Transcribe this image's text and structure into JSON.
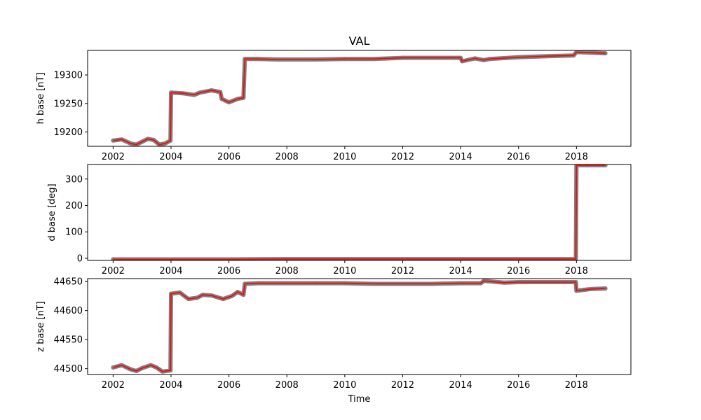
{
  "chart_data": [
    {
      "type": "line",
      "title": "VAL",
      "ylabel": "h base [nT]",
      "xlabel": "",
      "xlim": [
        2001.12,
        2019.88
      ],
      "ylim": [
        19175,
        19343
      ],
      "x_ticks": [
        2002,
        2004,
        2006,
        2008,
        2010,
        2012,
        2014,
        2016,
        2018
      ],
      "x_tick_labels": [
        "2002",
        "2004",
        "2006",
        "2008",
        "2010",
        "2012",
        "2014",
        "2016",
        "2018"
      ],
      "y_ticks": [
        19200,
        19250,
        19300
      ],
      "y_tick_labels": [
        "19200",
        "19250",
        "19300"
      ],
      "series": [
        {
          "color": "#808080",
          "style": "points",
          "x": [
            2002.0,
            2002.3,
            2002.6,
            2002.8,
            2003.0,
            2003.2,
            2003.4,
            2003.6,
            2003.8,
            2003.98,
            2004.0,
            2004.4,
            2004.8,
            2005.0,
            2005.4,
            2005.7,
            2005.75,
            2006.0,
            2006.3,
            2006.5,
            2006.55,
            2007.0,
            2007.7,
            2008.0,
            2009.0,
            2010.0,
            2011.0,
            2012.0,
            2013.0,
            2014.0,
            2014.05,
            2014.5,
            2014.8,
            2015.0,
            2016.0,
            2017.0,
            2017.9,
            2018.0,
            2018.5,
            2019.0
          ],
          "y": [
            19185,
            19187,
            19180,
            19178,
            19183,
            19188,
            19186,
            19178,
            19180,
            19185,
            19269,
            19268,
            19265,
            19269,
            19273,
            19270,
            19258,
            19252,
            19258,
            19260,
            19328,
            19328,
            19327,
            19327,
            19327,
            19328,
            19328,
            19330,
            19330,
            19330,
            19324,
            19329,
            19326,
            19328,
            19331,
            19333,
            19334,
            19340,
            19339,
            19338
          ]
        },
        {
          "color": "#ff0000",
          "style": "line",
          "x": [
            2002.0,
            2002.3,
            2002.6,
            2002.8,
            2003.0,
            2003.2,
            2003.4,
            2003.6,
            2003.8,
            2003.98,
            2004.0,
            2004.4,
            2004.8,
            2005.0,
            2005.4,
            2005.7,
            2005.75,
            2006.0,
            2006.3,
            2006.5,
            2006.55,
            2007.0,
            2007.7,
            2008.0,
            2009.0,
            2010.0,
            2011.0,
            2012.0,
            2013.0,
            2014.0,
            2014.05,
            2014.5,
            2014.8,
            2015.0,
            2016.0,
            2017.0,
            2017.9,
            2018.0,
            2018.5,
            2019.0
          ],
          "y": [
            19185,
            19187,
            19180,
            19178,
            19183,
            19188,
            19186,
            19178,
            19180,
            19185,
            19269,
            19268,
            19265,
            19269,
            19273,
            19270,
            19258,
            19252,
            19258,
            19260,
            19328,
            19328,
            19327,
            19327,
            19327,
            19328,
            19328,
            19330,
            19330,
            19330,
            19324,
            19329,
            19326,
            19328,
            19331,
            19333,
            19334,
            19340,
            19339,
            19338
          ]
        }
      ]
    },
    {
      "type": "line",
      "title": "",
      "ylabel": "d base [deg]",
      "xlabel": "",
      "xlim": [
        2001.12,
        2019.88
      ],
      "ylim": [
        -8,
        355
      ],
      "x_ticks": [
        2002,
        2004,
        2006,
        2008,
        2010,
        2012,
        2014,
        2016,
        2018
      ],
      "x_tick_labels": [
        "2002",
        "2004",
        "2006",
        "2008",
        "2010",
        "2012",
        "2014",
        "2016",
        "2018"
      ],
      "y_ticks": [
        0,
        100,
        200,
        300
      ],
      "y_tick_labels": [
        "0",
        "100",
        "200",
        "300"
      ],
      "series": [
        {
          "color": "#808080",
          "style": "points",
          "x": [
            2002.0,
            2004.0,
            2006.0,
            2008.0,
            2010.0,
            2012.0,
            2014.0,
            2016.0,
            2017.98,
            2018.0,
            2018.5,
            2019.0
          ],
          "y": [
            -4,
            -4,
            -4,
            -3,
            -3,
            -3,
            -3,
            -3,
            -3,
            352,
            352,
            352
          ]
        },
        {
          "color": "#ff0000",
          "style": "line",
          "x": [
            2002.0,
            2004.0,
            2006.0,
            2008.0,
            2010.0,
            2012.0,
            2014.0,
            2016.0,
            2017.98,
            2018.0,
            2018.5,
            2019.0
          ],
          "y": [
            -4,
            -4,
            -4,
            -3,
            -3,
            -3,
            -3,
            -3,
            -3,
            352,
            352,
            352
          ]
        }
      ]
    },
    {
      "type": "line",
      "title": "",
      "ylabel": "z base [nT]",
      "xlabel": "Time",
      "xlim": [
        2001.12,
        2019.88
      ],
      "ylim": [
        44490,
        44655
      ],
      "x_ticks": [
        2002,
        2004,
        2006,
        2008,
        2010,
        2012,
        2014,
        2016,
        2018
      ],
      "x_tick_labels": [
        "2002",
        "2004",
        "2006",
        "2008",
        "2010",
        "2012",
        "2014",
        "2016",
        "2018"
      ],
      "y_ticks": [
        44500,
        44550,
        44600,
        44650
      ],
      "y_tick_labels": [
        "44500",
        "44550",
        "44600",
        "44650"
      ],
      "series": [
        {
          "color": "#808080",
          "style": "points",
          "x": [
            2002.0,
            2002.3,
            2002.6,
            2002.8,
            2003.0,
            2003.3,
            2003.5,
            2003.7,
            2003.98,
            2004.0,
            2004.3,
            2004.6,
            2004.9,
            2005.1,
            2005.4,
            2005.8,
            2006.1,
            2006.3,
            2006.5,
            2006.55,
            2007.0,
            2008.0,
            2009.0,
            2010.0,
            2011.0,
            2012.0,
            2013.0,
            2014.0,
            2014.7,
            2014.8,
            2015.5,
            2016.0,
            2017.0,
            2017.98,
            2018.0,
            2018.5,
            2019.0
          ],
          "y": [
            44502,
            44506,
            44499,
            44496,
            44501,
            44506,
            44502,
            44495,
            44497,
            44629,
            44631,
            44620,
            44622,
            44627,
            44626,
            44620,
            44625,
            44632,
            44627,
            44646,
            44647,
            44647,
            44647,
            44647,
            44646,
            44646,
            44646,
            44647,
            44647,
            44651,
            44648,
            44649,
            44649,
            44649,
            44634,
            44637,
            44638
          ]
        },
        {
          "color": "#ff0000",
          "style": "line",
          "x": [
            2002.0,
            2002.3,
            2002.6,
            2002.8,
            2003.0,
            2003.3,
            2003.5,
            2003.7,
            2003.98,
            2004.0,
            2004.3,
            2004.6,
            2004.9,
            2005.1,
            2005.4,
            2005.8,
            2006.1,
            2006.3,
            2006.5,
            2006.55,
            2007.0,
            2008.0,
            2009.0,
            2010.0,
            2011.0,
            2012.0,
            2013.0,
            2014.0,
            2014.7,
            2014.8,
            2015.5,
            2016.0,
            2017.0,
            2017.98,
            2018.0,
            2018.5,
            2019.0
          ],
          "y": [
            44502,
            44506,
            44499,
            44496,
            44501,
            44506,
            44502,
            44495,
            44497,
            44629,
            44631,
            44620,
            44622,
            44627,
            44626,
            44620,
            44625,
            44632,
            44627,
            44646,
            44647,
            44647,
            44647,
            44647,
            44646,
            44646,
            44646,
            44647,
            44647,
            44651,
            44648,
            44649,
            44649,
            44649,
            44634,
            44637,
            44638
          ]
        }
      ]
    }
  ]
}
